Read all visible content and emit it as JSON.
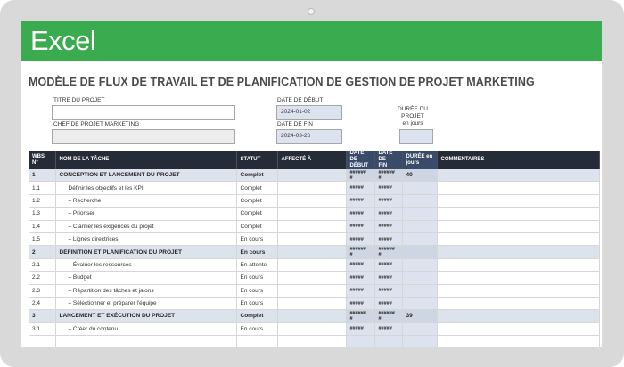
{
  "app": {
    "name": "Excel"
  },
  "page": {
    "title": "MODÈLE DE FLUX DE TRAVAIL ET DE PLANIFICATION DE GESTION DE PROJET MARKETING"
  },
  "project": {
    "title_label": "TITRE DU PROJET",
    "title_value": "",
    "manager_label": "CHEF DE PROJET MARKETING",
    "manager_value": "",
    "start_label": "DATE DE DÉBUT",
    "start_value": "2024-01-02",
    "end_label": "DATE DE FIN",
    "end_value": "2024-03-26",
    "duration_label_1": "DURÉE DU",
    "duration_label_2": "PROJET",
    "duration_unit": "en jours",
    "duration_value": ""
  },
  "table": {
    "headers": {
      "wbs": "WBS N°",
      "task": "NOM DE LA TÂCHE",
      "status": "STATUT",
      "assigned": "AFFECTÉ À",
      "start_1": "DATE DE",
      "start_2": "DÉBUT",
      "end_1": "DATE DE",
      "end_2": "FIN",
      "duration_1": "DURÉE en",
      "duration_2": "jours",
      "comments": "COMMENTAIRES"
    },
    "rows": [
      {
        "wbs": "1",
        "task": "CONCEPTION ET LANCEMENT DU PROJET",
        "status": "Complet",
        "assigned": "",
        "start": "######\n#",
        "end": "######\n#",
        "duration": "40",
        "comments": ""
      },
      {
        "wbs": "1.1",
        "task": "Définir les objectifs et les KPI",
        "status": "Complet",
        "assigned": "",
        "start": "#####",
        "end": "#####",
        "duration": "",
        "comments": ""
      },
      {
        "wbs": "1.2",
        "task": "– Recherche",
        "status": "Complet",
        "assigned": "",
        "start": "#####",
        "end": "#####",
        "duration": "",
        "comments": ""
      },
      {
        "wbs": "1.3",
        "task": "– Prioriser",
        "status": "Complet",
        "assigned": "",
        "start": "#####",
        "end": "#####",
        "duration": "",
        "comments": ""
      },
      {
        "wbs": "1.4",
        "task": "– Clarifier les exigences du projet",
        "status": "Complet",
        "assigned": "",
        "start": "#####",
        "end": "#####",
        "duration": "",
        "comments": ""
      },
      {
        "wbs": "1.5",
        "task": "– Lignes directrices",
        "status": "En cours",
        "assigned": "",
        "start": "#####",
        "end": "#####",
        "duration": "",
        "comments": ""
      },
      {
        "wbs": "2",
        "task": "DÉFINITION ET PLANIFICATION DU PROJET",
        "status": "En cours",
        "assigned": "",
        "start": "######\n#",
        "end": "######\n#",
        "duration": "",
        "comments": ""
      },
      {
        "wbs": "2.1",
        "task": "– Évaluer les ressources",
        "status": "En attente",
        "assigned": "",
        "start": "#####",
        "end": "#####",
        "duration": "",
        "comments": ""
      },
      {
        "wbs": "2.2",
        "task": "– Budget",
        "status": "En cours",
        "assigned": "",
        "start": "#####",
        "end": "#####",
        "duration": "",
        "comments": ""
      },
      {
        "wbs": "2.3",
        "task": "– Répartition des tâches et jalons",
        "status": "En cours",
        "assigned": "",
        "start": "#####",
        "end": "#####",
        "duration": "",
        "comments": ""
      },
      {
        "wbs": "2.4",
        "task": "– Sélectionner et préparer l'équipe",
        "status": "En cours",
        "assigned": "",
        "start": "#####",
        "end": "#####",
        "duration": "",
        "comments": ""
      },
      {
        "wbs": "3",
        "task": "LANCEMENT ET EXÉCUTION DU PROJET",
        "status": "Complet",
        "assigned": "",
        "start": "######\n#",
        "end": "######\n#",
        "duration": "39",
        "comments": ""
      },
      {
        "wbs": "3.1",
        "task": "– Créer du contenu",
        "status": "En cours",
        "assigned": "",
        "start": "#####",
        "end": "#####",
        "duration": "",
        "comments": ""
      },
      {
        "wbs": "",
        "task": "",
        "status": "",
        "assigned": "",
        "start": "",
        "end": "",
        "duration": "",
        "comments": ""
      }
    ]
  }
}
